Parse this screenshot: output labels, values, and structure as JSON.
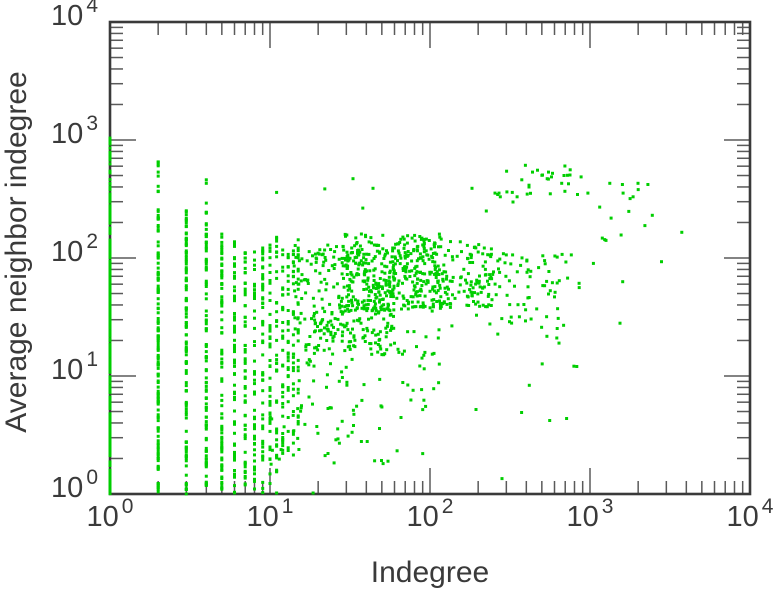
{
  "figure_title": "Scatter plot of average neighbor indegree versus indegree",
  "chart_data": {
    "type": "scatter",
    "title": "",
    "xlabel": "Indegree",
    "ylabel": "Average neighbor indegree",
    "x_scale": "log",
    "y_scale": "log",
    "xlim": [
      1,
      10000
    ],
    "ylim": [
      1,
      10000
    ],
    "grid": false,
    "legend": "none",
    "tick_base": "10",
    "x_tick_exponents": [
      0,
      1,
      2,
      3,
      4
    ],
    "y_tick_exponents": [
      0,
      1,
      2,
      3,
      4
    ],
    "axis": {
      "line_color": "#3a3a3a",
      "tick_color": "#5a5a5a",
      "major_tick_len": 26,
      "minor_tick_len": 13
    },
    "marker": {
      "shape": "square",
      "size": 3,
      "color": "#00CE00"
    },
    "seed": 1234567,
    "points": [
      [
        255,
        355
      ],
      [
        265,
        345
      ],
      [
        275,
        330
      ],
      [
        330,
        298
      ],
      [
        375,
        460
      ],
      [
        437,
        535
      ],
      [
        470,
        555
      ],
      [
        505,
        505
      ],
      [
        575,
        487
      ],
      [
        665,
        430
      ],
      [
        750,
        505
      ],
      [
        835,
        345
      ],
      [
        880,
        487
      ],
      [
        970,
        355
      ],
      [
        1150,
        270
      ],
      [
        1330,
        430
      ],
      [
        1610,
        355
      ],
      [
        1860,
        330
      ],
      [
        2450,
        230
      ],
      [
        3750,
        165
      ],
      [
        2,
        650
      ],
      [
        4,
        460
      ],
      [
        4,
        430
      ],
      [
        11,
        360
      ],
      [
        22,
        385
      ],
      [
        33,
        470
      ],
      [
        44,
        390
      ],
      [
        38,
        265
      ],
      [
        183,
        390
      ],
      [
        225,
        250
      ],
      [
        270,
        355
      ],
      [
        350,
        330
      ],
      [
        194,
        5.2
      ],
      [
        560,
        4.2
      ],
      [
        620,
        21
      ],
      [
        1540,
        28
      ],
      [
        640,
        19
      ],
      [
        282,
        1.35
      ],
      [
        90,
        2.2
      ],
      [
        18.6,
        1.02
      ],
      [
        11,
        1.02
      ],
      [
        520,
        95
      ],
      [
        1050,
        90
      ],
      [
        2800,
        93
      ],
      [
        1600,
        63
      ],
      [
        2000,
        380
      ],
      [
        2300,
        420
      ]
    ],
    "point_clusters": [
      {
        "x_range": [
          1,
          1
        ],
        "y_range": [
          1,
          400
        ],
        "count": 280
      },
      {
        "x_range": [
          1,
          1
        ],
        "y_range": [
          400,
          1050
        ],
        "count": 18
      },
      {
        "x_range": [
          2,
          2
        ],
        "y_range": [
          1,
          280
        ],
        "count": 130
      },
      {
        "x_range": [
          2,
          2
        ],
        "y_range": [
          280,
          660
        ],
        "count": 8
      },
      {
        "x_range": [
          3,
          3
        ],
        "y_range": [
          1,
          200
        ],
        "count": 100
      },
      {
        "x_range": [
          3,
          3
        ],
        "y_range": [
          200,
          275
        ],
        "count": 6
      },
      {
        "x_range": [
          4,
          4
        ],
        "y_range": [
          1,
          170
        ],
        "count": 85
      },
      {
        "x_range": [
          4,
          4
        ],
        "y_range": [
          170,
          300
        ],
        "count": 7
      },
      {
        "x_range": [
          5,
          5
        ],
        "y_range": [
          1,
          160
        ],
        "count": 75
      },
      {
        "x_range": [
          6,
          6
        ],
        "y_range": [
          1,
          140
        ],
        "count": 65
      },
      {
        "x_range": [
          7,
          7
        ],
        "y_range": [
          1,
          130
        ],
        "count": 58
      },
      {
        "x_range": [
          8,
          8
        ],
        "y_range": [
          1,
          150
        ],
        "count": 52
      },
      {
        "x_range": [
          9,
          9
        ],
        "y_range": [
          1,
          140
        ],
        "count": 48
      },
      {
        "x_range": [
          10,
          10
        ],
        "y_range": [
          1,
          160
        ],
        "count": 45
      },
      {
        "x_range": [
          11,
          11
        ],
        "y_range": [
          1.5,
          150
        ],
        "count": 38
      },
      {
        "x_range": [
          12,
          12
        ],
        "y_range": [
          2,
          140
        ],
        "count": 34
      },
      {
        "x_range": [
          13,
          13
        ],
        "y_range": [
          2,
          130
        ],
        "count": 30
      },
      {
        "x_range": [
          14,
          14
        ],
        "y_range": [
          2,
          140
        ],
        "count": 28
      },
      {
        "x_range": [
          15,
          15
        ],
        "y_range": [
          3,
          150
        ],
        "count": 26
      },
      {
        "x_range": [
          14,
          60
        ],
        "y_range": [
          15,
          130
        ],
        "count": 280
      },
      {
        "x_range": [
          28,
          120
        ],
        "y_range": [
          35,
          160
        ],
        "count": 260
      },
      {
        "x_range": [
          55,
          250
        ],
        "y_range": [
          38,
          140
        ],
        "count": 190
      },
      {
        "x_range": [
          15,
          120
        ],
        "y_range": [
          5,
          30
        ],
        "count": 85
      },
      {
        "x_range": [
          10,
          70
        ],
        "y_range": [
          1.5,
          6
        ],
        "count": 40
      },
      {
        "x_range": [
          120,
          700
        ],
        "y_range": [
          25,
          110
        ],
        "count": 65
      },
      {
        "x_range": [
          200,
          900
        ],
        "y_range": [
          55,
          120
        ],
        "count": 25
      },
      {
        "x_range": [
          300,
          900
        ],
        "y_range": [
          290,
          620
        ],
        "count": 20
      },
      {
        "x_range": [
          950,
          2600
        ],
        "y_range": [
          140,
          460
        ],
        "count": 10
      },
      {
        "x_range": [
          250,
          1000
        ],
        "y_range": [
          3.5,
          25
        ],
        "count": 8
      }
    ]
  }
}
